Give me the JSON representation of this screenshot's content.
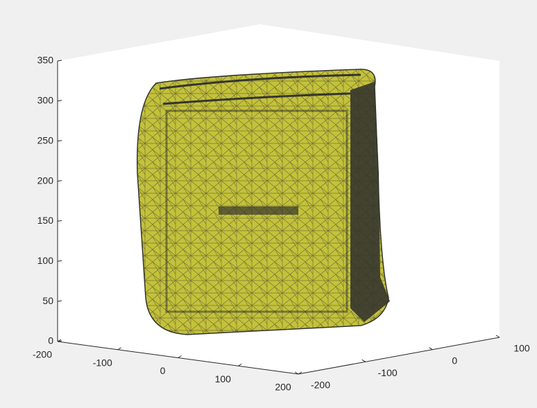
{
  "chart_data": {
    "type": "mesh3d",
    "xlim": [
      -200,
      200
    ],
    "xticks": [
      -200,
      -100,
      0,
      100,
      200
    ],
    "ylim": [
      -200,
      100
    ],
    "yticks": [
      -200,
      -100,
      0,
      100
    ],
    "zlim": [
      0,
      350
    ],
    "zticks": [
      0,
      50,
      100,
      150,
      200,
      250,
      300,
      350
    ],
    "color": "#c4c23a",
    "edge_color": "#35352f"
  }
}
